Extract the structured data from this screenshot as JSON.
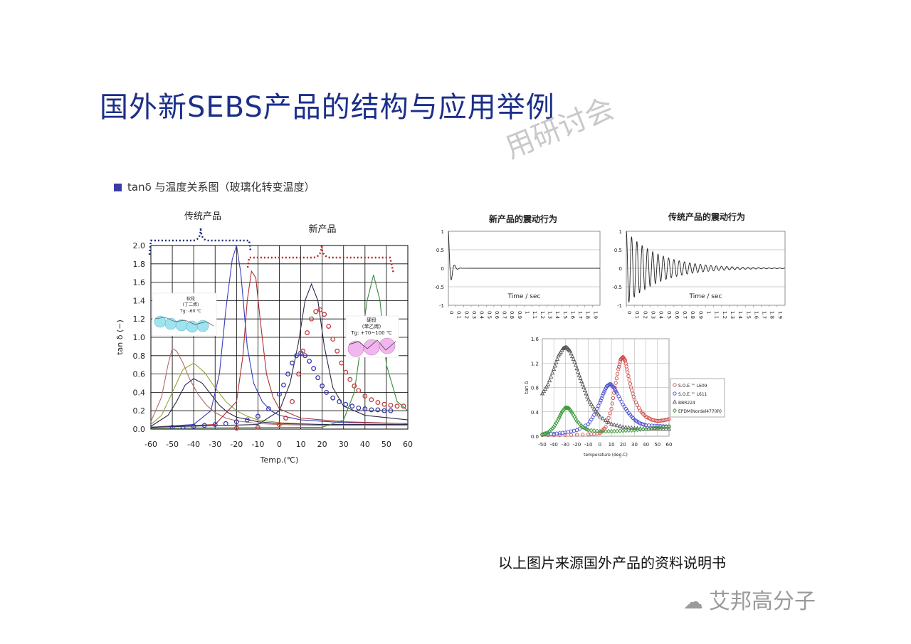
{
  "slide": {
    "title": "国外新SEBS产品的结构与应用举例",
    "watermark": "用研讨会",
    "footer_note": "以上图片来源国外产品的资料说明书",
    "brand": "艾邦高分子",
    "brand_icon": "wechat-icon"
  },
  "chart_data": [
    {
      "type": "line",
      "heading": "tanδ 与温度关系图（玻璃化转变温度）",
      "xlabel": "Temp.(℃)",
      "ylabel": "tan δ (−)",
      "xlim": [
        -60,
        60
      ],
      "ylim": [
        0,
        2.0
      ],
      "xticks": [
        -60,
        -50,
        -40,
        -30,
        -20,
        -10,
        0,
        10,
        20,
        30,
        40,
        50,
        60
      ],
      "yticks": [
        0.0,
        0.2,
        0.4,
        0.6,
        0.8,
        1.0,
        1.2,
        1.4,
        1.6,
        1.8,
        2.0
      ],
      "grid": true,
      "annotations": {
        "traditional": "传统产品",
        "new": "新产品",
        "soft_segment": "软段",
        "soft_segment_sub": "(丁二烯)",
        "soft_tg": "Tg: -60 ℃",
        "hard_segment": "硬段",
        "hard_segment_sub": "(苯乙烯)",
        "hard_tg": "Tg: +70~100 ℃"
      },
      "series": [
        {
          "style": "line",
          "color": "#b06a6a",
          "x": [
            -60,
            -55,
            -52,
            -50,
            -48,
            -45,
            -42,
            -38,
            -34,
            -30,
            -25,
            -20,
            -10,
            0,
            20,
            40,
            60
          ],
          "y": [
            0.08,
            0.35,
            0.7,
            0.88,
            0.85,
            0.72,
            0.55,
            0.38,
            0.26,
            0.18,
            0.12,
            0.09,
            0.06,
            0.05,
            0.04,
            0.04,
            0.04
          ]
        },
        {
          "style": "line",
          "color": "#9aa23a",
          "x": [
            -60,
            -55,
            -50,
            -45,
            -40,
            -35,
            -30,
            -25,
            -20,
            -15,
            -10,
            0,
            20,
            40,
            60
          ],
          "y": [
            0.05,
            0.15,
            0.4,
            0.65,
            0.72,
            0.62,
            0.45,
            0.3,
            0.2,
            0.14,
            0.1,
            0.07,
            0.05,
            0.05,
            0.05
          ]
        },
        {
          "style": "line",
          "color": "#2a2a4a",
          "x": [
            -60,
            -52,
            -48,
            -44,
            -40,
            -36,
            -32,
            -28,
            -24,
            -20,
            -10,
            0,
            20,
            40,
            60
          ],
          "y": [
            0.03,
            0.15,
            0.3,
            0.48,
            0.55,
            0.5,
            0.38,
            0.26,
            0.18,
            0.13,
            0.08,
            0.06,
            0.05,
            0.05,
            0.05
          ]
        },
        {
          "style": "line",
          "color": "#3a3ac0",
          "x": [
            -60,
            -40,
            -32,
            -28,
            -25,
            -22,
            -20,
            -18,
            -15,
            -12,
            -8,
            -4,
            0,
            10,
            30,
            60
          ],
          "y": [
            0.02,
            0.05,
            0.2,
            0.6,
            1.3,
            1.85,
            2.0,
            1.7,
            0.9,
            0.5,
            0.3,
            0.2,
            0.15,
            0.1,
            0.07,
            0.06
          ]
        },
        {
          "style": "line",
          "color": "#b03030",
          "x": [
            -60,
            -30,
            -20,
            -17,
            -15,
            -13,
            -11,
            -9,
            -6,
            -3,
            0,
            10,
            30,
            60
          ],
          "y": [
            0.02,
            0.05,
            0.3,
            0.8,
            1.4,
            1.72,
            1.65,
            1.2,
            0.6,
            0.35,
            0.22,
            0.12,
            0.08,
            0.06
          ]
        },
        {
          "style": "line",
          "color": "#2a2a4a",
          "x": [
            -60,
            -10,
            0,
            5,
            9,
            12,
            15,
            18,
            21,
            25,
            30,
            40,
            60
          ],
          "y": [
            0.02,
            0.05,
            0.2,
            0.5,
            0.95,
            1.4,
            1.58,
            1.4,
            0.9,
            0.45,
            0.25,
            0.15,
            0.1
          ]
        },
        {
          "style": "line",
          "color": "#3a8a3a",
          "x": [
            -60,
            20,
            30,
            35,
            38,
            41,
            44,
            47,
            50,
            55,
            60
          ],
          "y": [
            0.01,
            0.02,
            0.1,
            0.4,
            0.9,
            1.4,
            1.68,
            1.4,
            0.7,
            0.3,
            0.2
          ]
        },
        {
          "style": "markers",
          "color": "#3a3ab0",
          "x": [
            -50,
            -45,
            -40,
            -35,
            -30,
            -25,
            -20,
            -15,
            -10,
            -5,
            0,
            2,
            4,
            6,
            8,
            10,
            12,
            14,
            16,
            18,
            20,
            22,
            25,
            28,
            31,
            34,
            37,
            40,
            43,
            46,
            49,
            52
          ],
          "y": [
            0.02,
            0.02,
            0.03,
            0.04,
            0.05,
            0.06,
            0.08,
            0.1,
            0.14,
            0.22,
            0.38,
            0.48,
            0.6,
            0.72,
            0.8,
            0.83,
            0.8,
            0.74,
            0.66,
            0.56,
            0.47,
            0.4,
            0.34,
            0.3,
            0.27,
            0.25,
            0.23,
            0.22,
            0.21,
            0.21,
            0.2,
            0.2
          ]
        },
        {
          "style": "markers",
          "color": "#c04040",
          "x": [
            -20,
            -10,
            0,
            3,
            6,
            9,
            11,
            13,
            15,
            17,
            19,
            21,
            23,
            25,
            27,
            29,
            31,
            33,
            35,
            37,
            40,
            43,
            46,
            49,
            52,
            55,
            58
          ],
          "y": [
            0.01,
            0.02,
            0.05,
            0.12,
            0.3,
            0.6,
            0.85,
            1.05,
            1.2,
            1.28,
            1.3,
            1.25,
            1.12,
            0.98,
            0.85,
            0.72,
            0.62,
            0.54,
            0.47,
            0.42,
            0.36,
            0.32,
            0.29,
            0.27,
            0.26,
            0.25,
            0.25
          ]
        }
      ]
    },
    {
      "type": "line",
      "title": "新产品的震动行为",
      "xlabel": "Time / sec",
      "xlim": [
        0,
        2.0
      ],
      "ylim": [
        -1,
        1
      ],
      "xticks": [
        "0",
        "0.1",
        "0.2",
        "0.3",
        "0.4",
        "0.5",
        "0.6",
        "0.7",
        "0.8",
        "0.9",
        "1",
        "1.1",
        "1.2",
        "1.3",
        "1.4",
        "1.5",
        "1.6",
        "1.7",
        "1.8",
        "1.9"
      ],
      "yticks": [
        "-1",
        "-0.5",
        "0",
        "0.5",
        "1"
      ],
      "decay": 30,
      "frequency": 12
    },
    {
      "type": "line",
      "title": "传统产品的震动行为",
      "xlabel": "Time / sec",
      "xlim": [
        0,
        2.0
      ],
      "ylim": [
        -1,
        1
      ],
      "xticks": [
        "0",
        "0.1",
        "0.2",
        "0.3",
        "0.4",
        "0.5",
        "0.6",
        "0.7",
        "0.8",
        "0.9",
        "1",
        "1.1",
        "1.2",
        "1.3",
        "1.4",
        "1.5",
        "1.6",
        "1.7",
        "1.8",
        "1.9"
      ],
      "yticks": [
        "-1",
        "-0.5",
        "0",
        "0.5",
        "1"
      ],
      "decay": 2.4,
      "frequency": 15
    },
    {
      "type": "scatter",
      "xlabel": "temperature (deg.C)",
      "ylabel": "tan δ",
      "xlim": [
        -50,
        60
      ],
      "ylim": [
        0,
        1.6
      ],
      "xticks": [
        -50,
        -40,
        -30,
        -20,
        -10,
        0,
        10,
        20,
        30,
        40,
        50,
        60
      ],
      "yticks": [
        "0.0",
        "0.4",
        "0.8",
        "1.2",
        "1.6"
      ],
      "legend": [
        "S.O.E.™ L609",
        "S.O.E.™ L611",
        "BBR224",
        "EPDM(Nordel4770R)"
      ],
      "series": [
        {
          "name": "S.O.E.™ L609",
          "color": "#d04a4a",
          "marker": "circle",
          "x": [
            -50,
            -30,
            -10,
            0,
            5,
            10,
            13,
            16,
            18,
            20,
            22,
            24,
            27,
            30,
            35,
            40,
            45,
            50,
            55,
            60
          ],
          "y": [
            0.02,
            0.02,
            0.03,
            0.05,
            0.15,
            0.45,
            0.8,
            1.1,
            1.26,
            1.3,
            1.24,
            1.05,
            0.8,
            0.6,
            0.42,
            0.32,
            0.27,
            0.25,
            0.26,
            0.28
          ]
        },
        {
          "name": "S.O.E.™ L611",
          "color": "#4a4ad0",
          "marker": "circle",
          "x": [
            -50,
            -40,
            -30,
            -20,
            -10,
            -5,
            0,
            3,
            6,
            9,
            12,
            15,
            20,
            25,
            30,
            35,
            40,
            50,
            60
          ],
          "y": [
            0.03,
            0.04,
            0.06,
            0.1,
            0.2,
            0.35,
            0.55,
            0.7,
            0.82,
            0.86,
            0.8,
            0.7,
            0.52,
            0.38,
            0.27,
            0.21,
            0.18,
            0.17,
            0.16
          ]
        },
        {
          "name": "BBR224",
          "color": "#555555",
          "marker": "triangle",
          "x": [
            -50,
            -45,
            -40,
            -36,
            -32,
            -29,
            -26,
            -22,
            -18,
            -14,
            -10,
            -5,
            0,
            10,
            20,
            30,
            40,
            50,
            60
          ],
          "y": [
            0.7,
            0.85,
            1.1,
            1.32,
            1.44,
            1.46,
            1.4,
            1.22,
            1.0,
            0.8,
            0.6,
            0.45,
            0.32,
            0.2,
            0.15,
            0.13,
            0.12,
            0.12,
            0.12
          ]
        },
        {
          "name": "EPDM(Nordel4770R)",
          "color": "#3a9a3a",
          "marker": "diamond",
          "x": [
            -50,
            -45,
            -40,
            -36,
            -33,
            -30,
            -27,
            -24,
            -20,
            -15,
            -10,
            0,
            10,
            20,
            30,
            40,
            50,
            60
          ],
          "y": [
            0.03,
            0.06,
            0.15,
            0.28,
            0.4,
            0.47,
            0.46,
            0.38,
            0.25,
            0.15,
            0.1,
            0.08,
            0.08,
            0.09,
            0.1,
            0.12,
            0.14,
            0.16
          ]
        }
      ]
    }
  ]
}
